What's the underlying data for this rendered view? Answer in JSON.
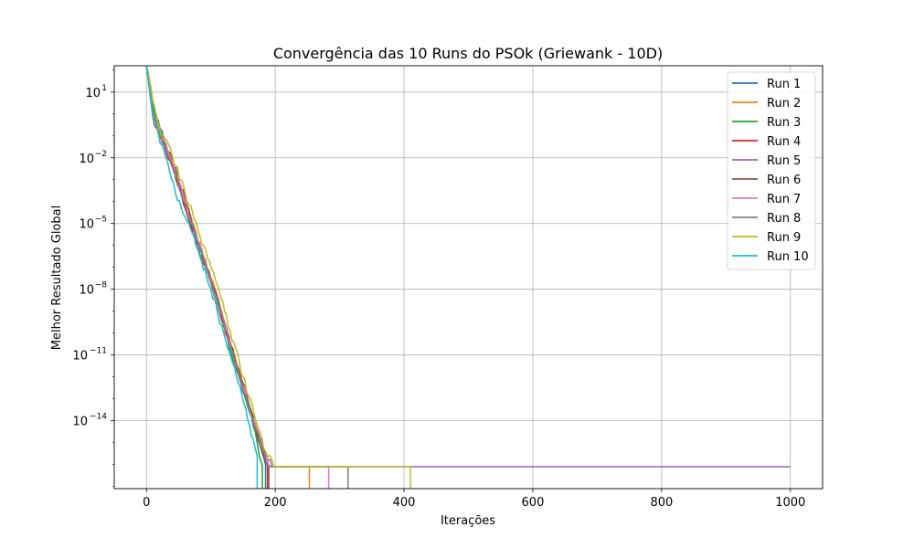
{
  "chart_data": {
    "type": "line",
    "title": "Convergência das 10 Runs do PSOk (Griewank - 10D)",
    "xlabel": "Iterações",
    "ylabel": "Melhor Resultado Global",
    "yscale": "log",
    "xlim": [
      -50,
      1050
    ],
    "ylim_exponent": [
      -17.1,
      2.2
    ],
    "x_ticks": [
      0,
      200,
      400,
      600,
      800,
      1000
    ],
    "x_tick_labels": [
      "0",
      "200",
      "400",
      "600",
      "800",
      "1000"
    ],
    "y_tick_exponents": [
      1,
      -2,
      -5,
      -8,
      -11,
      -14
    ],
    "y_tick_bases": [
      "10",
      "10",
      "10",
      "10",
      "10",
      "10"
    ],
    "y_tick_powers": [
      "1",
      "−2",
      "−5",
      "−8",
      "−11",
      "−14"
    ],
    "grid": true,
    "legend_position": "top-right",
    "series": [
      {
        "name": "Run 1",
        "color": "#1f77b4",
        "end_iter": 185,
        "points": [
          [
            0,
            2.2
          ],
          [
            12,
            0.2
          ],
          [
            40,
            -2.3
          ],
          [
            60,
            -4.1
          ],
          [
            80,
            -5.9
          ],
          [
            100,
            -7.6
          ],
          [
            120,
            -9.6
          ],
          [
            140,
            -11.6
          ],
          [
            160,
            -13.5
          ],
          [
            175,
            -15.0
          ],
          [
            185,
            -16.0
          ],
          [
            185,
            -16.1
          ],
          [
            185,
            -17.1
          ]
        ]
      },
      {
        "name": "Run 2",
        "color": "#ff7f0e",
        "end_iter": 253,
        "points": [
          [
            0,
            2.2
          ],
          [
            10,
            0.1
          ],
          [
            40,
            -2.2
          ],
          [
            60,
            -4.0
          ],
          [
            80,
            -5.8
          ],
          [
            100,
            -7.5
          ],
          [
            120,
            -9.4
          ],
          [
            140,
            -11.4
          ],
          [
            160,
            -13.4
          ],
          [
            180,
            -15.2
          ],
          [
            192,
            -16.1
          ],
          [
            253,
            -16.1
          ],
          [
            253,
            -17.1
          ]
        ]
      },
      {
        "name": "Run 3",
        "color": "#2ca02c",
        "end_iter": 180,
        "points": [
          [
            0,
            2.2
          ],
          [
            12,
            0.1
          ],
          [
            40,
            -2.4
          ],
          [
            60,
            -4.2
          ],
          [
            80,
            -6.0
          ],
          [
            100,
            -7.7
          ],
          [
            120,
            -9.7
          ],
          [
            140,
            -11.7
          ],
          [
            160,
            -13.6
          ],
          [
            172,
            -15.0
          ],
          [
            180,
            -16.1
          ],
          [
            180,
            -17.1
          ]
        ]
      },
      {
        "name": "Run 4",
        "color": "#d62728",
        "end_iter": 188,
        "points": [
          [
            0,
            2.2
          ],
          [
            8,
            0.3
          ],
          [
            12,
            -0.5
          ],
          [
            40,
            -2.4
          ],
          [
            60,
            -4.3
          ],
          [
            80,
            -6.0
          ],
          [
            100,
            -7.7
          ],
          [
            120,
            -9.6
          ],
          [
            140,
            -11.6
          ],
          [
            160,
            -13.4
          ],
          [
            178,
            -15.2
          ],
          [
            188,
            -16.1
          ],
          [
            188,
            -17.1
          ]
        ]
      },
      {
        "name": "Run 5",
        "color": "#9467bd",
        "end_iter": 1000,
        "points": [
          [
            0,
            2.2
          ],
          [
            10,
            0.0
          ],
          [
            40,
            -2.3
          ],
          [
            60,
            -4.1
          ],
          [
            80,
            -5.9
          ],
          [
            100,
            -7.6
          ],
          [
            120,
            -9.5
          ],
          [
            140,
            -11.5
          ],
          [
            160,
            -13.4
          ],
          [
            180,
            -15.3
          ],
          [
            195,
            -16.1
          ],
          [
            1000,
            -16.1
          ]
        ]
      },
      {
        "name": "Run 6",
        "color": "#8c564b",
        "end_iter": 190,
        "points": [
          [
            0,
            2.2
          ],
          [
            10,
            0.0
          ],
          [
            40,
            -2.1
          ],
          [
            60,
            -3.9
          ],
          [
            80,
            -5.8
          ],
          [
            100,
            -7.5
          ],
          [
            120,
            -9.4
          ],
          [
            140,
            -11.4
          ],
          [
            160,
            -13.3
          ],
          [
            180,
            -15.2
          ],
          [
            190,
            -16.1
          ],
          [
            190,
            -17.1
          ]
        ]
      },
      {
        "name": "Run 7",
        "color": "#e377c2",
        "end_iter": 283,
        "points": [
          [
            0,
            2.2
          ],
          [
            10,
            0.0
          ],
          [
            40,
            -2.2
          ],
          [
            60,
            -4.0
          ],
          [
            80,
            -5.8
          ],
          [
            100,
            -7.6
          ],
          [
            120,
            -9.5
          ],
          [
            140,
            -11.5
          ],
          [
            160,
            -13.4
          ],
          [
            180,
            -15.3
          ],
          [
            190,
            -16.1
          ],
          [
            283,
            -16.1
          ],
          [
            283,
            -17.1
          ]
        ]
      },
      {
        "name": "Run 8",
        "color": "#7f7f7f",
        "end_iter": 313,
        "points": [
          [
            0,
            2.2
          ],
          [
            10,
            0.0
          ],
          [
            40,
            -2.3
          ],
          [
            60,
            -4.1
          ],
          [
            80,
            -5.9
          ],
          [
            100,
            -7.7
          ],
          [
            120,
            -9.6
          ],
          [
            140,
            -11.6
          ],
          [
            160,
            -13.5
          ],
          [
            180,
            -15.3
          ],
          [
            188,
            -16.1
          ],
          [
            313,
            -16.1
          ],
          [
            313,
            -17.1
          ]
        ]
      },
      {
        "name": "Run 9",
        "color": "#bcbd22",
        "end_iter": 410,
        "points": [
          [
            0,
            2.2
          ],
          [
            10,
            0.6
          ],
          [
            20,
            -0.6
          ],
          [
            40,
            -1.9
          ],
          [
            60,
            -3.6
          ],
          [
            80,
            -5.3
          ],
          [
            95,
            -6.6
          ],
          [
            110,
            -7.8
          ],
          [
            130,
            -9.9
          ],
          [
            150,
            -12.0
          ],
          [
            170,
            -14.0
          ],
          [
            185,
            -15.4
          ],
          [
            198,
            -16.1
          ],
          [
            410,
            -16.1
          ],
          [
            410,
            -17.1
          ]
        ]
      },
      {
        "name": "Run 10",
        "color": "#17becf",
        "end_iter": 172,
        "points": [
          [
            0,
            2.2
          ],
          [
            10,
            -0.2
          ],
          [
            30,
            -2.0
          ],
          [
            45,
            -3.6
          ],
          [
            60,
            -4.7
          ],
          [
            80,
            -6.2
          ],
          [
            100,
            -8.0
          ],
          [
            120,
            -10.0
          ],
          [
            140,
            -12.0
          ],
          [
            160,
            -14.2
          ],
          [
            172,
            -15.6
          ],
          [
            172,
            -16.1
          ],
          [
            172,
            -17.1
          ]
        ]
      }
    ]
  }
}
